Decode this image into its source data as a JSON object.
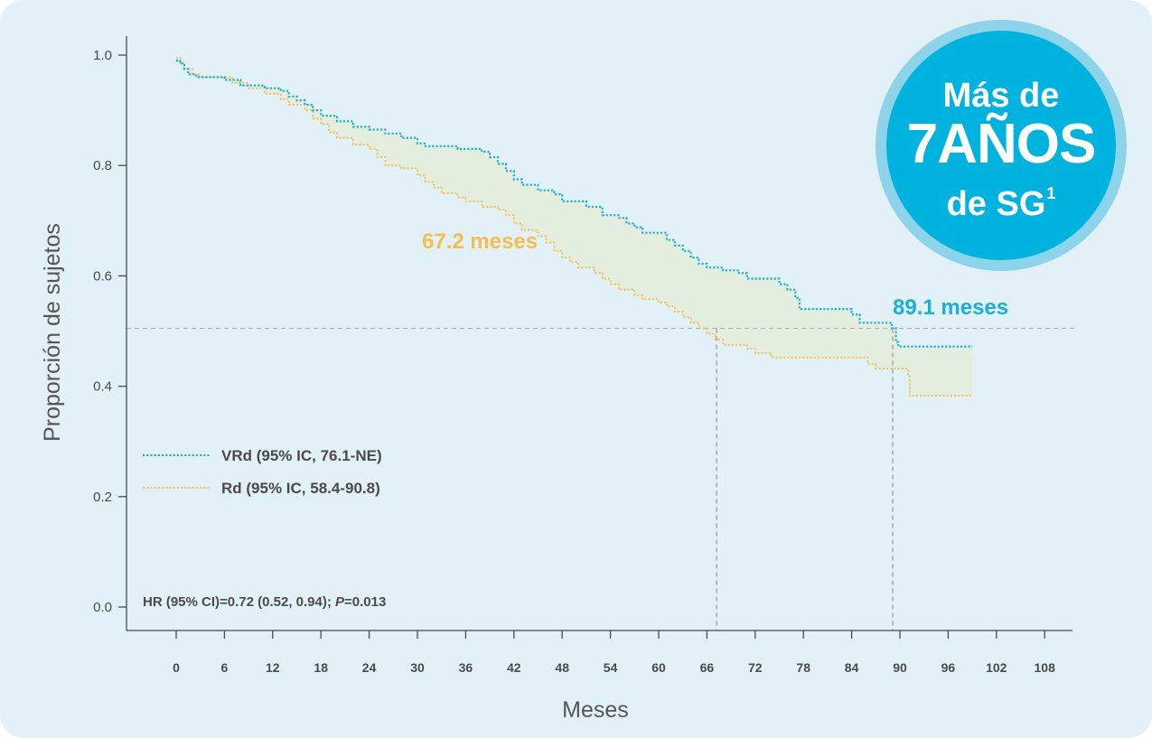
{
  "chart_data": {
    "type": "line",
    "subtype": "kaplan-meier step",
    "xlabel": "Meses",
    "ylabel": "Proporción de sujetos",
    "xlim": [
      0,
      108
    ],
    "ylim": [
      0.0,
      1.0
    ],
    "x_ticks": [
      0,
      6,
      12,
      18,
      24,
      30,
      36,
      42,
      48,
      54,
      60,
      66,
      72,
      78,
      84,
      90,
      96,
      102,
      108
    ],
    "y_ticks": [
      "0.0",
      "0.2",
      "0.4",
      "0.6",
      "0.8",
      "1.0"
    ],
    "grid": false,
    "legend_position": "left",
    "series": [
      {
        "name": "VRd (95% IC, 76.1-NE)",
        "color": "#1bb0d4",
        "style": "dotted",
        "points": [
          [
            0,
            0.99
          ],
          [
            0.5,
            0.985
          ],
          [
            1,
            0.975
          ],
          [
            1.5,
            0.965
          ],
          [
            2.5,
            0.96
          ],
          [
            6,
            0.955
          ],
          [
            8,
            0.945
          ],
          [
            11,
            0.94
          ],
          [
            13,
            0.935
          ],
          [
            14,
            0.925
          ],
          [
            15,
            0.918
          ],
          [
            16,
            0.91
          ],
          [
            17,
            0.9
          ],
          [
            18,
            0.89
          ],
          [
            20,
            0.88
          ],
          [
            22,
            0.87
          ],
          [
            24,
            0.865
          ],
          [
            26,
            0.858
          ],
          [
            28,
            0.85
          ],
          [
            30,
            0.84
          ],
          [
            31,
            0.835
          ],
          [
            35,
            0.83
          ],
          [
            38,
            0.825
          ],
          [
            39,
            0.815
          ],
          [
            40,
            0.803
          ],
          [
            41,
            0.79
          ],
          [
            42,
            0.775
          ],
          [
            43,
            0.765
          ],
          [
            45,
            0.755
          ],
          [
            47,
            0.748
          ],
          [
            48,
            0.735
          ],
          [
            51,
            0.725
          ],
          [
            53,
            0.71
          ],
          [
            55,
            0.705
          ],
          [
            56,
            0.695
          ],
          [
            57,
            0.688
          ],
          [
            58,
            0.678
          ],
          [
            61,
            0.665
          ],
          [
            62,
            0.655
          ],
          [
            63,
            0.645
          ],
          [
            64,
            0.633
          ],
          [
            65,
            0.622
          ],
          [
            66,
            0.615
          ],
          [
            68,
            0.61
          ],
          [
            70,
            0.605
          ],
          [
            71,
            0.595
          ],
          [
            75,
            0.585
          ],
          [
            76,
            0.575
          ],
          [
            77,
            0.56
          ],
          [
            77.5,
            0.54
          ],
          [
            84,
            0.53
          ],
          [
            85,
            0.515
          ],
          [
            89,
            0.505
          ],
          [
            89.5,
            0.48
          ],
          [
            89.8,
            0.472
          ],
          [
            99,
            0.472
          ]
        ]
      },
      {
        "name": "Rd (95% IC, 58.4-90.8)",
        "color": "#f3bf4e",
        "style": "dotted",
        "points": [
          [
            0,
            0.995
          ],
          [
            0.5,
            0.985
          ],
          [
            1,
            0.975
          ],
          [
            2,
            0.965
          ],
          [
            3,
            0.96
          ],
          [
            7,
            0.95
          ],
          [
            9,
            0.94
          ],
          [
            11,
            0.93
          ],
          [
            13,
            0.92
          ],
          [
            14,
            0.91
          ],
          [
            16,
            0.9
          ],
          [
            17,
            0.885
          ],
          [
            18,
            0.875
          ],
          [
            19,
            0.86
          ],
          [
            20,
            0.85
          ],
          [
            22,
            0.838
          ],
          [
            24,
            0.83
          ],
          [
            25,
            0.815
          ],
          [
            26,
            0.8
          ],
          [
            28,
            0.795
          ],
          [
            30,
            0.782
          ],
          [
            31,
            0.77
          ],
          [
            32,
            0.76
          ],
          [
            33,
            0.75
          ],
          [
            35,
            0.742
          ],
          [
            36,
            0.735
          ],
          [
            38,
            0.725
          ],
          [
            40,
            0.72
          ],
          [
            41,
            0.71
          ],
          [
            42,
            0.695
          ],
          [
            43,
            0.683
          ],
          [
            45,
            0.672
          ],
          [
            46,
            0.66
          ],
          [
            47,
            0.645
          ],
          [
            48,
            0.633
          ],
          [
            49,
            0.625
          ],
          [
            50,
            0.615
          ],
          [
            52,
            0.605
          ],
          [
            53,
            0.595
          ],
          [
            54,
            0.585
          ],
          [
            55,
            0.575
          ],
          [
            57,
            0.565
          ],
          [
            58,
            0.558
          ],
          [
            60,
            0.552
          ],
          [
            61,
            0.545
          ],
          [
            62,
            0.535
          ],
          [
            63,
            0.525
          ],
          [
            64,
            0.515
          ],
          [
            65,
            0.505
          ],
          [
            66,
            0.495
          ],
          [
            67,
            0.485
          ],
          [
            68,
            0.475
          ],
          [
            71,
            0.468
          ],
          [
            72,
            0.46
          ],
          [
            74,
            0.452
          ],
          [
            86,
            0.44
          ],
          [
            87,
            0.432
          ],
          [
            91,
            0.418
          ],
          [
            91.2,
            0.383
          ],
          [
            99,
            0.383
          ]
        ]
      }
    ],
    "annotations": {
      "median_rd": "67.2 meses",
      "median_vrd": "89.1 meses",
      "hr_text": "HR (95% CI)=0.72 (0.52, 0.94);",
      "p_label": "P",
      "p_value": "=0.013",
      "median_line_y": 0.505,
      "median_rd_x": 67.2,
      "median_vrd_x": 89.1
    }
  },
  "badge": {
    "line1": "Más de",
    "line2": "7AÑOS",
    "line3": "de SG",
    "superscript": "1"
  },
  "colors": {
    "background": "#e2f1f8",
    "vrd": "#1bb0d4",
    "rd": "#f3bf4e",
    "band_fill": "#e4eedf",
    "badge": "#00b3df",
    "badge_ring": "#8dd3ea"
  }
}
